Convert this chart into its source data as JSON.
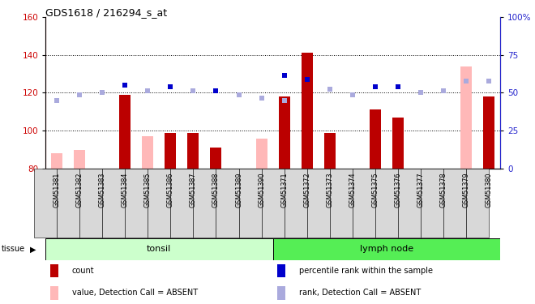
{
  "title": "GDS1618 / 216294_s_at",
  "samples": [
    "GSM51381",
    "GSM51382",
    "GSM51383",
    "GSM51384",
    "GSM51385",
    "GSM51386",
    "GSM51387",
    "GSM51388",
    "GSM51389",
    "GSM51390",
    "GSM51371",
    "GSM51372",
    "GSM51373",
    "GSM51374",
    "GSM51375",
    "GSM51376",
    "GSM51377",
    "GSM51378",
    "GSM51379",
    "GSM51380"
  ],
  "bar_values": [
    null,
    null,
    null,
    119,
    null,
    99,
    99,
    91,
    null,
    null,
    118,
    141,
    99,
    null,
    111,
    107,
    null,
    null,
    null,
    118
  ],
  "bar_absent": [
    88,
    90,
    null,
    null,
    97,
    null,
    null,
    null,
    null,
    96,
    null,
    null,
    null,
    null,
    null,
    null,
    null,
    null,
    134,
    null
  ],
  "rank_present_y": [
    null,
    null,
    null,
    124,
    null,
    123,
    null,
    121,
    null,
    null,
    129,
    127,
    null,
    null,
    123,
    123,
    null,
    null,
    null,
    null
  ],
  "rank_absent_y": [
    116,
    119,
    120,
    null,
    121,
    null,
    121,
    null,
    119,
    117,
    116,
    null,
    122,
    119,
    null,
    null,
    120,
    121,
    126,
    126
  ],
  "ylim_left": [
    80,
    160
  ],
  "ylim_right": [
    0,
    100
  ],
  "yticks_left": [
    80,
    100,
    120,
    140,
    160
  ],
  "yticks_right": [
    0,
    25,
    50,
    75,
    100
  ],
  "lcolor": "#cc0000",
  "rcolor": "#2222cc",
  "bar_color": "#bb0000",
  "bar_absent_color": "#ffb8b8",
  "rank_present_color": "#0000cc",
  "rank_absent_color": "#aaaadd",
  "tonsil_color": "#ccffcc",
  "lymph_color": "#55ee55",
  "cell_color": "#d8d8d8",
  "title_fontsize": 9,
  "legend": [
    {
      "label": "count",
      "color": "#bb0000"
    },
    {
      "label": "percentile rank within the sample",
      "color": "#0000cc"
    },
    {
      "label": "value, Detection Call = ABSENT",
      "color": "#ffb8b8"
    },
    {
      "label": "rank, Detection Call = ABSENT",
      "color": "#aaaadd"
    }
  ]
}
